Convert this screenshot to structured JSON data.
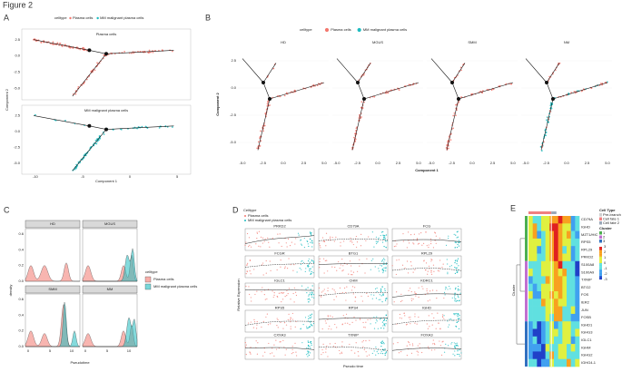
{
  "figure_title": "Figure 2",
  "panels": {
    "a": {
      "label": "A",
      "legend_title": "celltype",
      "legend_items": [
        "Plasma cells",
        "MM malignant plasma cells"
      ],
      "facets": [
        "Plasma cells",
        "MM malignant plasma cells"
      ],
      "x_axis_label": "Component 1",
      "y_axis_label": "Component 2",
      "x_ticks": [
        "-10",
        "-5",
        "0",
        "5"
      ],
      "y_ticks": [
        "2.5",
        "0.0",
        "-2.5",
        "-5.0"
      ]
    },
    "b": {
      "label": "B",
      "legend_title": "celltype",
      "legend_items": [
        "Plasma cells",
        "MM malignant plasma cells"
      ],
      "facets": [
        "HD",
        "MGUS",
        "SMM",
        "NM"
      ],
      "x_axis_label": "Component 1",
      "y_axis_label": "Component 2",
      "x_ticks": [
        "-5.0",
        "-2.5",
        "0.0",
        "2.5",
        "5.0"
      ],
      "y_ticks": [
        "2.5",
        "0.0",
        "-2.5",
        "-5.0"
      ]
    },
    "c": {
      "label": "C",
      "facets": [
        "HD",
        "MGUS",
        "SMM",
        "MM"
      ],
      "y_axis_label": "density",
      "x_axis_label": "Pseudotime",
      "x_ticks": [
        "0",
        "5",
        "10"
      ],
      "y_ticks": [
        "0.0",
        "0.2",
        "0.4",
        "0.6"
      ],
      "legend_title": "celltype",
      "legend_items": [
        "Plasma cells",
        "MM malignant plasma cells"
      ]
    },
    "d": {
      "label": "D",
      "legend_title": "Celltype",
      "legend_items": [
        "Plasma cells",
        "MM malignant plasma cells"
      ],
      "genes": [
        "PRKD2",
        "CD79A",
        "FCG",
        "FCGR",
        "BTG1",
        "RPL29",
        "IGLC1",
        "CHM",
        "KDRC1",
        "RPS5",
        "RPS4",
        "IGHD",
        "CXXA3",
        "TXNIP",
        "FOXA3"
      ],
      "y_axis_label": "Relative Expression",
      "x_axis_label": "Pseudo time"
    },
    "e": {
      "label": "E",
      "genes": [
        "CD79A",
        "IGHD",
        "MZT1/HIC",
        "RPS5",
        "RPL29",
        "PRKD2",
        "S100A8",
        "S100A9",
        "TXNIP",
        "BTG2",
        "FOS",
        "IER2",
        "JUN",
        "FOSB",
        "IGHD1",
        "IGHG3",
        "IGLC1",
        "IGHM",
        "IGHG2",
        "IGHG4-1"
      ],
      "y_axis_label": "Cluster",
      "cell_type_title": "Cell Type",
      "cell_types": [
        "Pre-branch",
        "Cell fate 1",
        "Cell fate 2"
      ],
      "cluster_title": "Cluster",
      "clusters": [
        "1",
        "2",
        "3"
      ],
      "scale_ticks": [
        "3",
        "2",
        "1",
        "0",
        "-1",
        "-2",
        "-3"
      ]
    }
  }
}
